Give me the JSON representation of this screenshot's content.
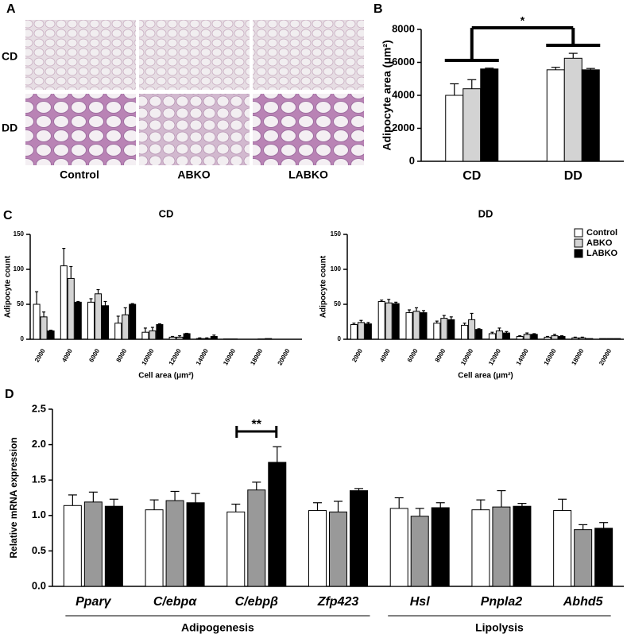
{
  "panel_labels": [
    "A",
    "B",
    "C",
    "D"
  ],
  "histology": {
    "rows": [
      "CD",
      "DD"
    ],
    "columns": [
      "Control",
      "ABKO",
      "LABKO"
    ]
  },
  "chart_data": [
    {
      "type": "bar",
      "ylabel": "Adipocyte area (μm²)",
      "annotation": "*",
      "categories": [
        "CD",
        "DD"
      ],
      "series": [
        {
          "name": "Control",
          "color": "#ffffff",
          "values": [
            4000,
            5550
          ],
          "errors": [
            700,
            150
          ]
        },
        {
          "name": "ABKO",
          "color": "#d3d3d3",
          "values": [
            4400,
            6250
          ],
          "errors": [
            550,
            300
          ]
        },
        {
          "name": "LABKO",
          "color": "#000000",
          "values": [
            5600,
            5550
          ],
          "errors": [
            50,
            80
          ]
        }
      ],
      "ylim": [
        0,
        8000
      ],
      "yticks": [
        0,
        2000,
        4000,
        6000,
        8000
      ]
    },
    {
      "type": "bar",
      "title": "CD",
      "ylabel": "Adipocyte count",
      "xlabel": "Cell area (μm²)",
      "categories": [
        "2000",
        "4000",
        "6000",
        "8000",
        "10000",
        "12000",
        "14000",
        "16000",
        "18000",
        "20000"
      ],
      "series": [
        {
          "name": "Control",
          "color": "#ffffff",
          "values": [
            50,
            105,
            53,
            23,
            10,
            3,
            1,
            0.5,
            0,
            0
          ],
          "errors": [
            18,
            25,
            5,
            10,
            6,
            1,
            1,
            0,
            0,
            0
          ]
        },
        {
          "name": "ABKO",
          "color": "#d3d3d3",
          "values": [
            32,
            87,
            65,
            35,
            12,
            3,
            1,
            0.5,
            0.5,
            0
          ],
          "errors": [
            7,
            17,
            6,
            10,
            5,
            2,
            1,
            0,
            0,
            0
          ]
        },
        {
          "name": "LABKO",
          "color": "#000000",
          "values": [
            12,
            53,
            48,
            50,
            21,
            8,
            4,
            0,
            1,
            0
          ],
          "errors": [
            1,
            1,
            6,
            1,
            1,
            0.5,
            2,
            0,
            0,
            0
          ]
        }
      ],
      "ylim": [
        0,
        150
      ],
      "yticks": [
        0,
        50,
        100,
        150
      ]
    },
    {
      "type": "bar",
      "title": "DD",
      "ylabel": "Adipocyte count",
      "xlabel": "Cell area (μm²)",
      "legend": "top-right",
      "categories": [
        "2000",
        "4000",
        "6000",
        "8000",
        "10000",
        "12000",
        "14000",
        "16000",
        "18000",
        "20000"
      ],
      "series": [
        {
          "name": "Control",
          "color": "#ffffff",
          "values": [
            21,
            54,
            38,
            23,
            20,
            8,
            4,
            3,
            2,
            1
          ],
          "errors": [
            2,
            2,
            4,
            3,
            3,
            2,
            1,
            1,
            1,
            0
          ]
        },
        {
          "name": "ABKO",
          "color": "#d3d3d3",
          "values": [
            24,
            52,
            40,
            30,
            28,
            12,
            7,
            5,
            2,
            1
          ],
          "errors": [
            3,
            5,
            5,
            4,
            9,
            4,
            2,
            2,
            1,
            0
          ]
        },
        {
          "name": "LABKO",
          "color": "#000000",
          "values": [
            22,
            51,
            38,
            28,
            14,
            9,
            7,
            4,
            1,
            1
          ],
          "errors": [
            2,
            2,
            3,
            4,
            1,
            2,
            1,
            1,
            0,
            0
          ]
        }
      ],
      "ylim": [
        0,
        150
      ],
      "yticks": [
        0,
        50,
        100,
        150
      ]
    },
    {
      "type": "bar",
      "ylabel": "Relative mRNA expression",
      "annotation": "**",
      "categories": [
        "Pparγ",
        "C/ebpα",
        "C/ebpβ",
        "Zfp423",
        "Hsl",
        "Pnpla2",
        "Abhd5"
      ],
      "group_labels": [
        "Adipogenesis",
        "Lipolysis"
      ],
      "series": [
        {
          "color": "#ffffff",
          "values": [
            1.14,
            1.08,
            1.05,
            1.07,
            1.1,
            1.08,
            1.07
          ],
          "errors": [
            0.15,
            0.14,
            0.11,
            0.11,
            0.15,
            0.14,
            0.16
          ]
        },
        {
          "color": "#999999",
          "values": [
            1.19,
            1.21,
            1.36,
            1.05,
            0.99,
            1.12,
            0.8
          ],
          "errors": [
            0.14,
            0.13,
            0.11,
            0.15,
            0.11,
            0.23,
            0.07
          ]
        },
        {
          "color": "#000000",
          "values": [
            1.13,
            1.18,
            1.75,
            1.35,
            1.11,
            1.13,
            0.82
          ],
          "errors": [
            0.1,
            0.13,
            0.22,
            0.03,
            0.07,
            0.04,
            0.08
          ]
        }
      ],
      "ylim": [
        0,
        2.5
      ],
      "yticks": [
        {
          "value": 0,
          "label": "0.0"
        },
        0.5,
        {
          "value": 1,
          "label": "1.0"
        },
        1.5,
        {
          "value": 2,
          "label": "2.0"
        },
        2.5
      ]
    }
  ]
}
